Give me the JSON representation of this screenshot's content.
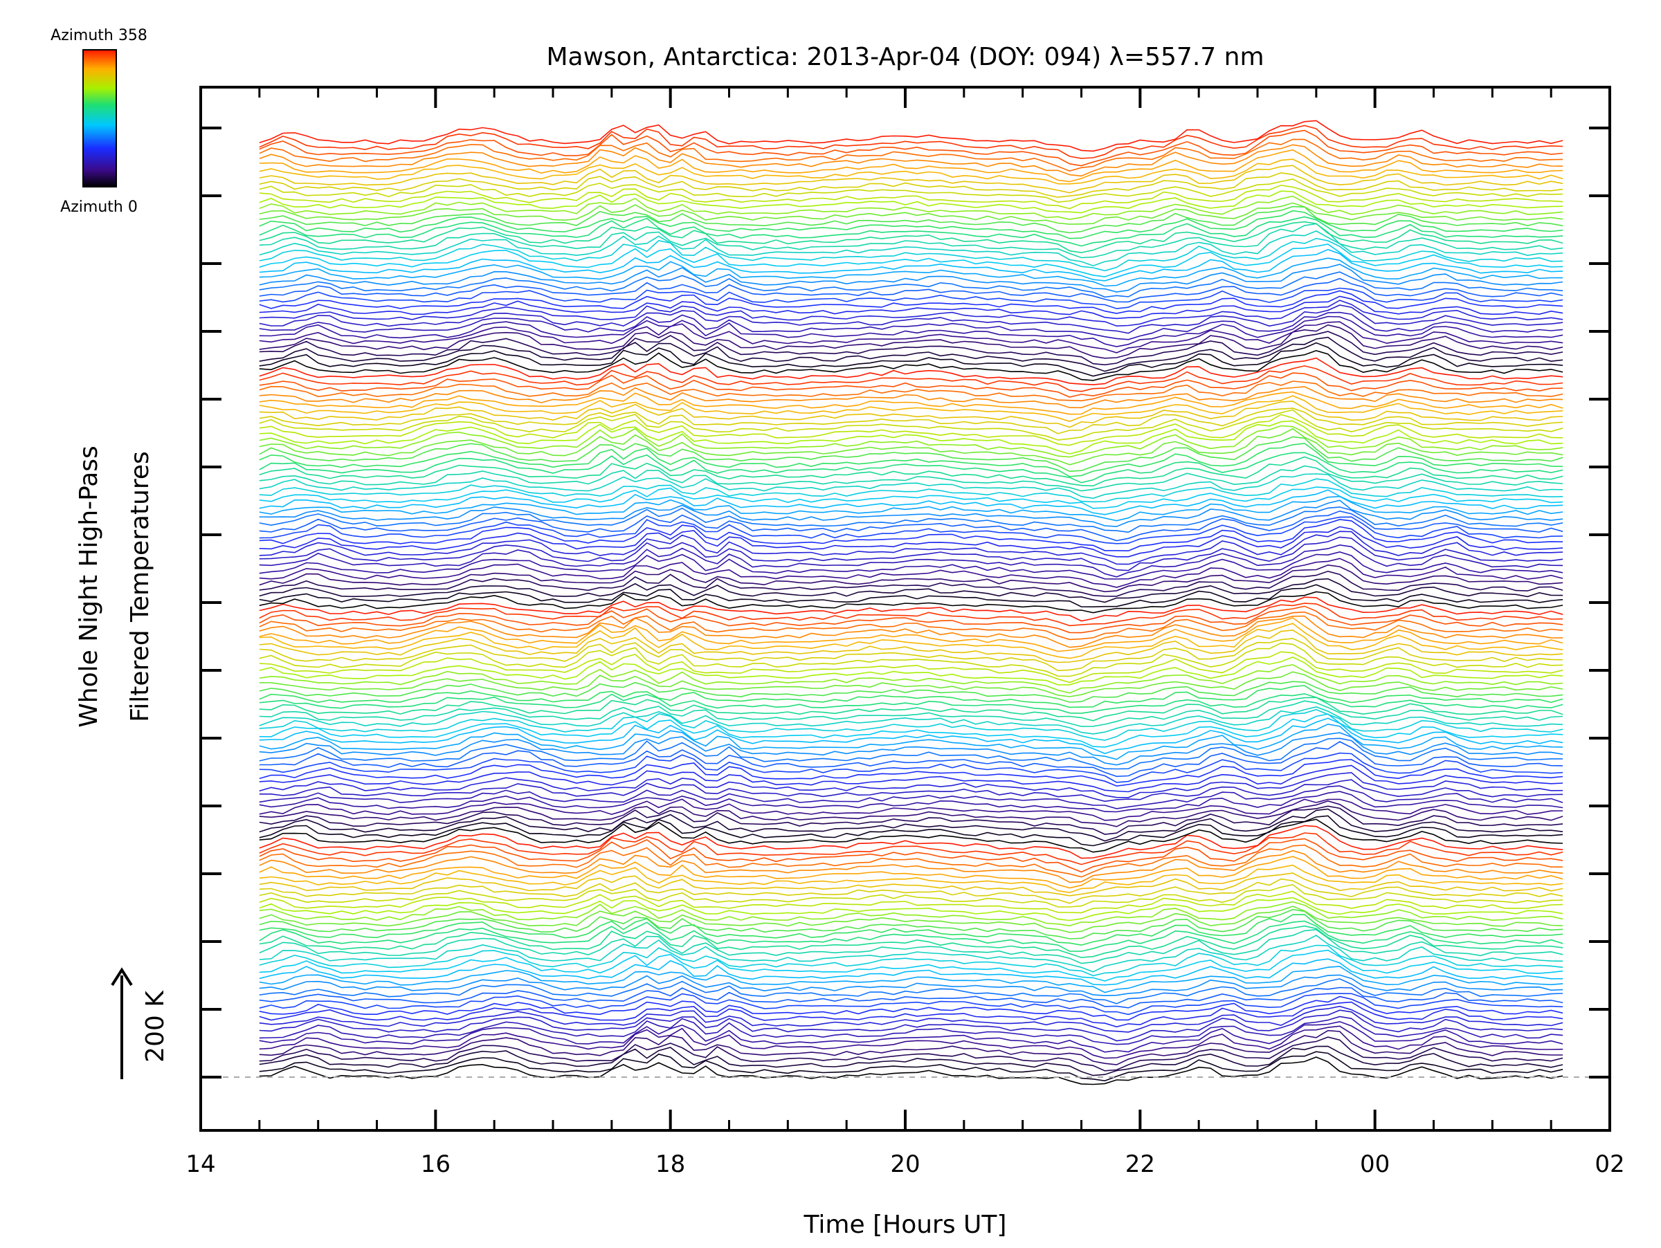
{
  "chart_data": {
    "type": "line",
    "title": "Mawson, Antarctica: 2013-Apr-04 (DOY: 094) λ=557.7 nm",
    "xlabel": "Time [Hours UT]",
    "ylabel_line1": "Whole Night High-Pass",
    "ylabel_line2": "Filtered Temperatures",
    "x_range_hours": [
      14,
      26
    ],
    "data_x_range_hours": [
      14.5,
      25.6
    ],
    "x_ticks": [
      "14",
      "16",
      "18",
      "20",
      "22",
      "00",
      "02"
    ],
    "scale_bar_label": "200 K",
    "scale_bar_kelvin": 200,
    "series_count": 160,
    "stacked": true,
    "colorbar": {
      "top_label": "Azimuth 358",
      "bottom_label": "Azimuth 0",
      "azimuth_range": [
        0,
        358
      ],
      "colormap": "rainbow (black→purple→blue→cyan→green→yellow→red)"
    },
    "baseline": "dashed gray reference line at first trace",
    "grid": false
  }
}
